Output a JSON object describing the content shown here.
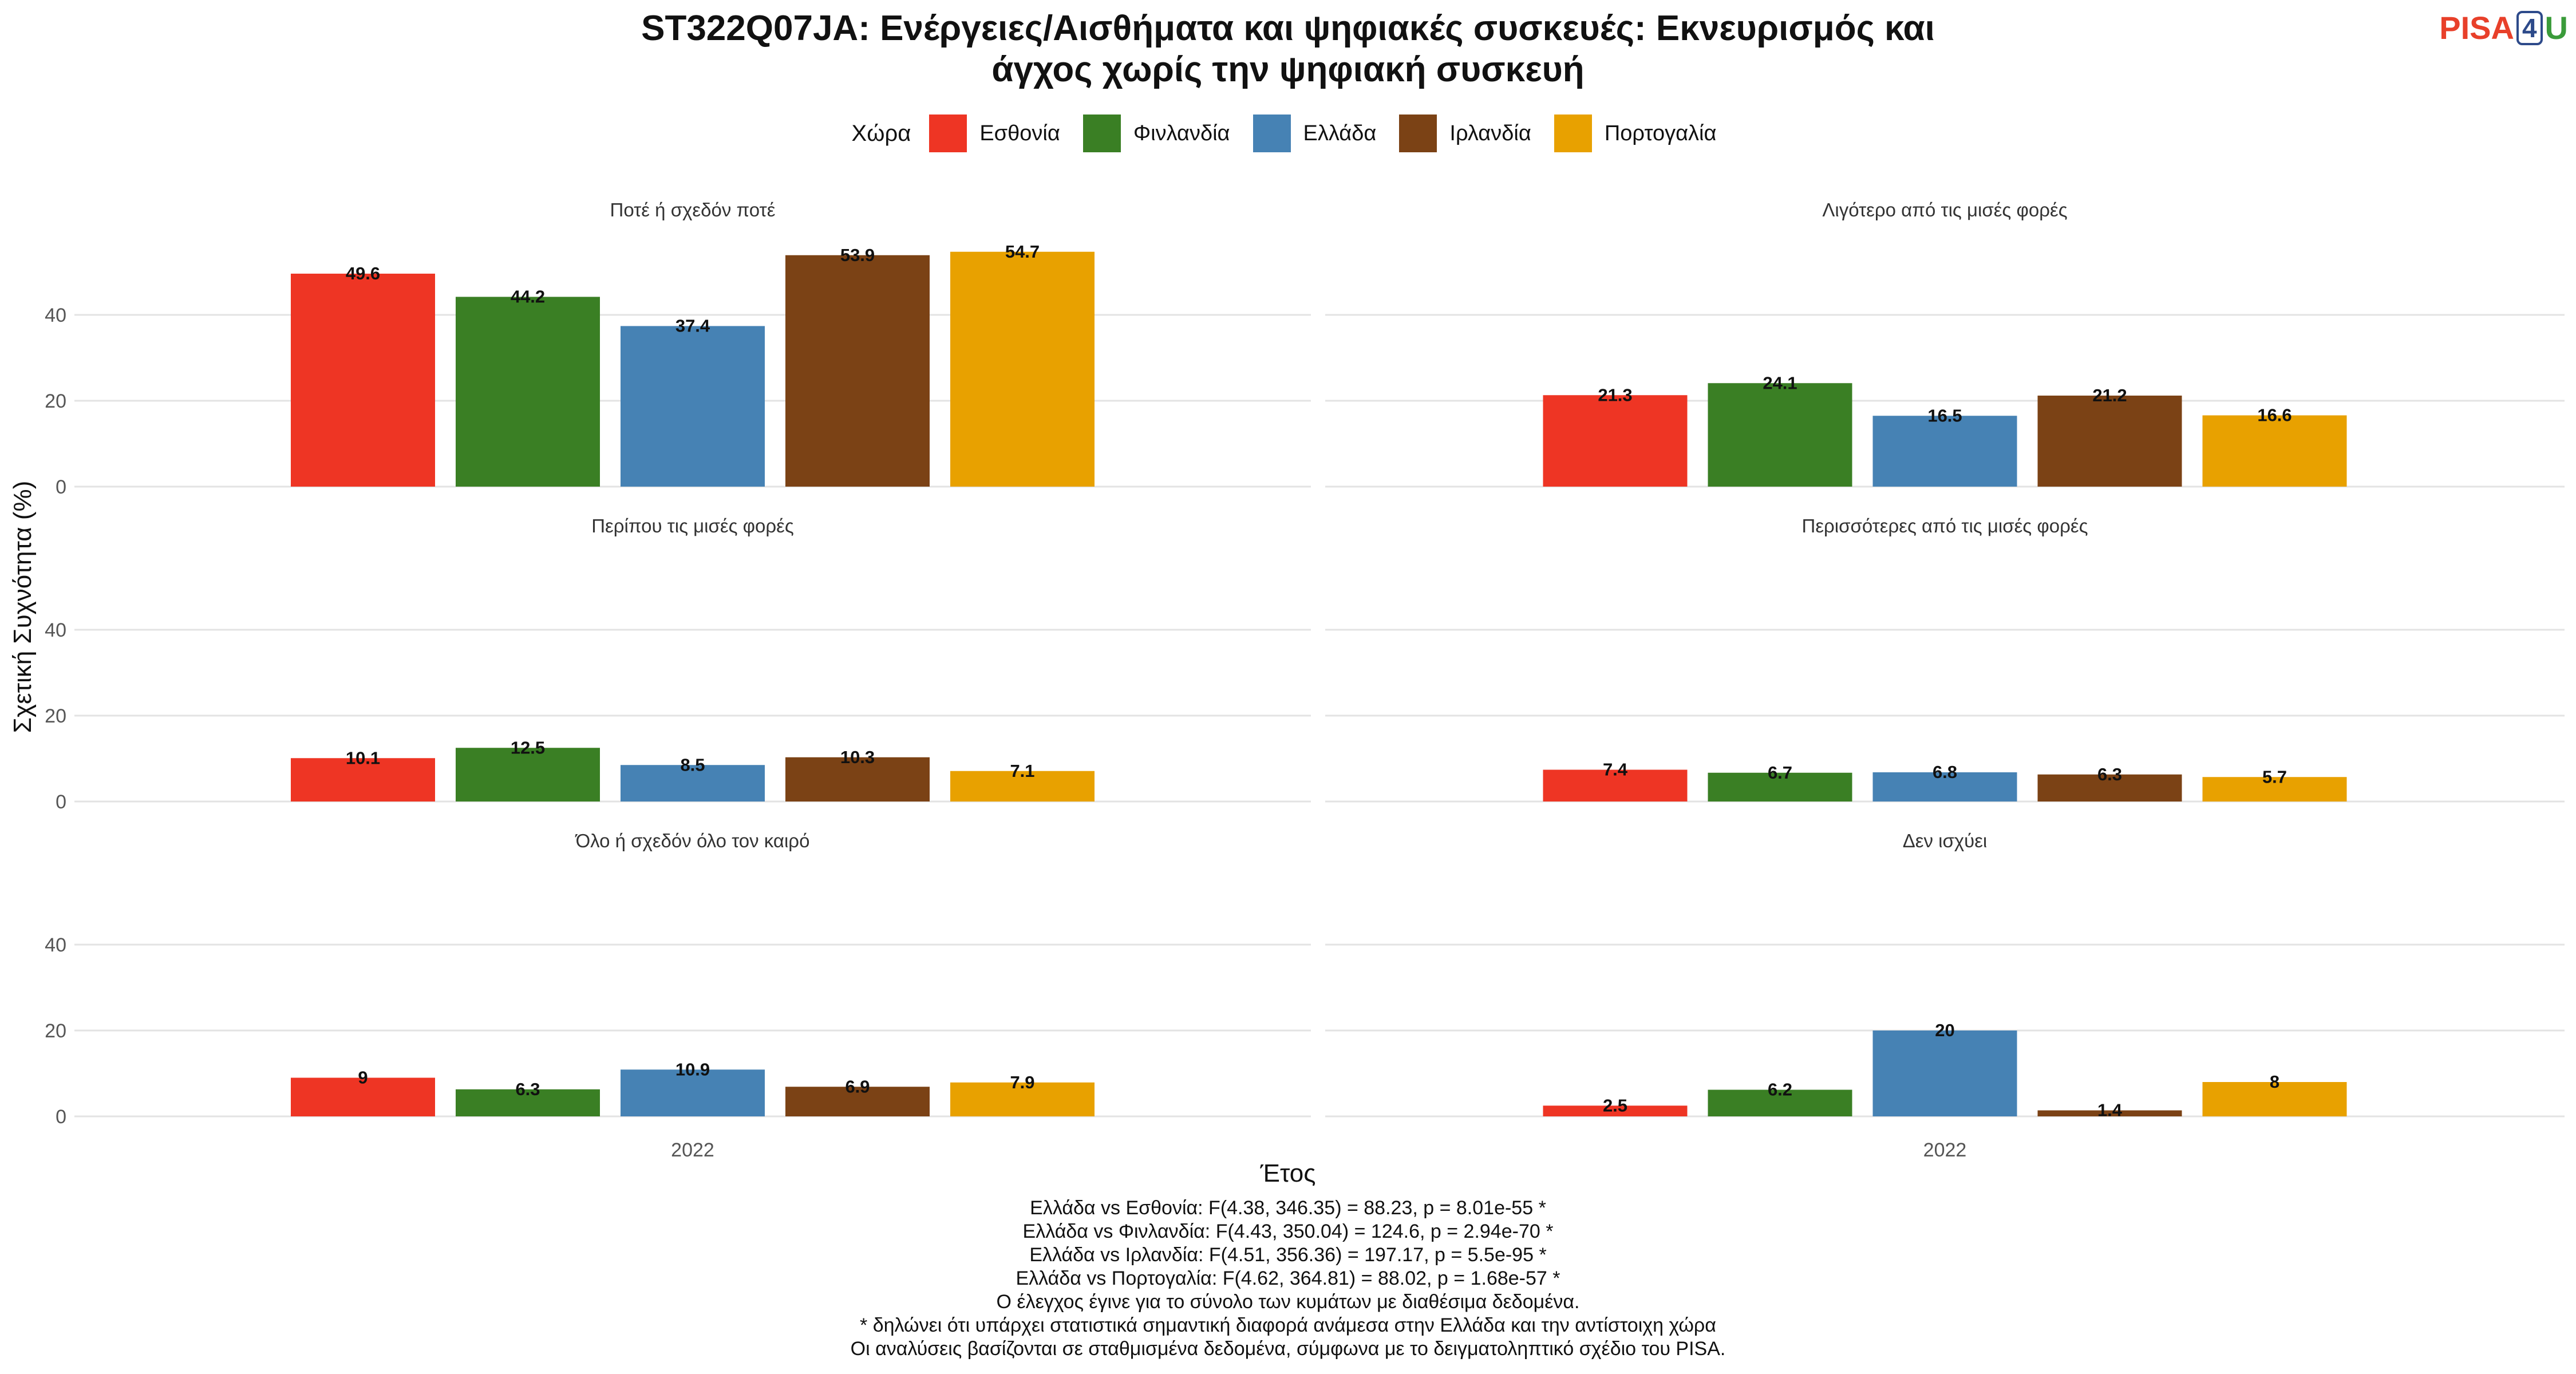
{
  "title": {
    "line1": "ST322Q07JA: Ενέργειες/Αισθήματα και ψηφιακές συσκευές: Εκνευρισμός και",
    "line2": "άγχος χωρίς την ψηφιακή συσκευή"
  },
  "logo": {
    "part1": "PISA",
    "part2": "4",
    "part3": "U"
  },
  "legend": {
    "title": "Χώρα",
    "items": [
      {
        "label": "Εσθονία",
        "color": "#EE3524"
      },
      {
        "label": "Φινλανδία",
        "color": "#3A7F24"
      },
      {
        "label": "Ελλάδα",
        "color": "#4682B4"
      },
      {
        "label": "Ιρλανδία",
        "color": "#7B4215"
      },
      {
        "label": "Πορτογαλία",
        "color": "#E8A100"
      }
    ]
  },
  "axes": {
    "ylabel": "Σχετική Συχνότητα (%)",
    "xlabel": "Έτος"
  },
  "notes": [
    "Ελλάδα vs Εσθονία: F(4.38, 346.35) = 88.23, p = 8.01e-55 *",
    "Ελλάδα vs Φινλανδία: F(4.43, 350.04) = 124.6, p = 2.94e-70 *",
    "Ελλάδα vs Ιρλανδία: F(4.51, 356.36) = 197.17, p = 5.5e-95 *",
    "Ελλάδα vs Πορτογαλία: F(4.62, 364.81) = 88.02, p = 1.68e-57 *",
    "Ο έλεγχος έγινε για το σύνολο των κυμάτων με διαθέσιμα δεδομένα.",
    "* δηλώνει ότι υπάρχει στατιστικά σημαντική διαφορά ανάμεσα στην Ελλάδα και την αντίστοιχη χώρα",
    "Οι αναλύσεις βασίζονται σε σταθμισμένα δεδομένα, σύμφωνα με το δειγματοληπτικό σχέδιο του PISA."
  ],
  "chart_data": {
    "type": "bar",
    "categories": [
      "2022"
    ],
    "yticks": [
      0,
      20,
      40
    ],
    "ylim": [
      0,
      58
    ],
    "grid": true,
    "legend_position": "top",
    "series_names": [
      "Εσθονία",
      "Φινλανδία",
      "Ελλάδα",
      "Ιρλανδία",
      "Πορτογαλία"
    ],
    "panels": [
      {
        "title": "Ποτέ ή σχεδόν ποτέ",
        "values": [
          49.6,
          44.2,
          37.4,
          53.9,
          54.7
        ],
        "labels": [
          "49.6",
          "44.2",
          "37.4",
          "53.9",
          "54.7"
        ]
      },
      {
        "title": "Λιγότερο από τις μισές φορές",
        "values": [
          21.3,
          24.1,
          16.5,
          21.2,
          16.6
        ],
        "labels": [
          "21.3",
          "24.1",
          "16.5",
          "21.2",
          "16.6"
        ]
      },
      {
        "title": "Περίπου τις μισές φορές",
        "values": [
          10.1,
          12.5,
          8.5,
          10.3,
          7.1
        ],
        "labels": [
          "10.1",
          "12.5",
          "8.5",
          "10.3",
          "7.1"
        ]
      },
      {
        "title": "Περισσότερες από τις μισές φορές",
        "values": [
          7.4,
          6.7,
          6.8,
          6.3,
          5.7
        ],
        "labels": [
          "7.4",
          "6.7",
          "6.8",
          "6.3",
          "5.7"
        ]
      },
      {
        "title": "Όλο ή σχεδόν όλο τον καιρό",
        "values": [
          9,
          6.3,
          10.9,
          6.9,
          7.9
        ],
        "labels": [
          "9",
          "6.3",
          "10.9",
          "6.9",
          "7.9"
        ]
      },
      {
        "title": "Δεν ισχύει",
        "values": [
          2.5,
          6.2,
          20,
          1.4,
          8
        ],
        "labels": [
          "2.5",
          "6.2",
          "20",
          "1.4",
          "8"
        ]
      }
    ]
  }
}
